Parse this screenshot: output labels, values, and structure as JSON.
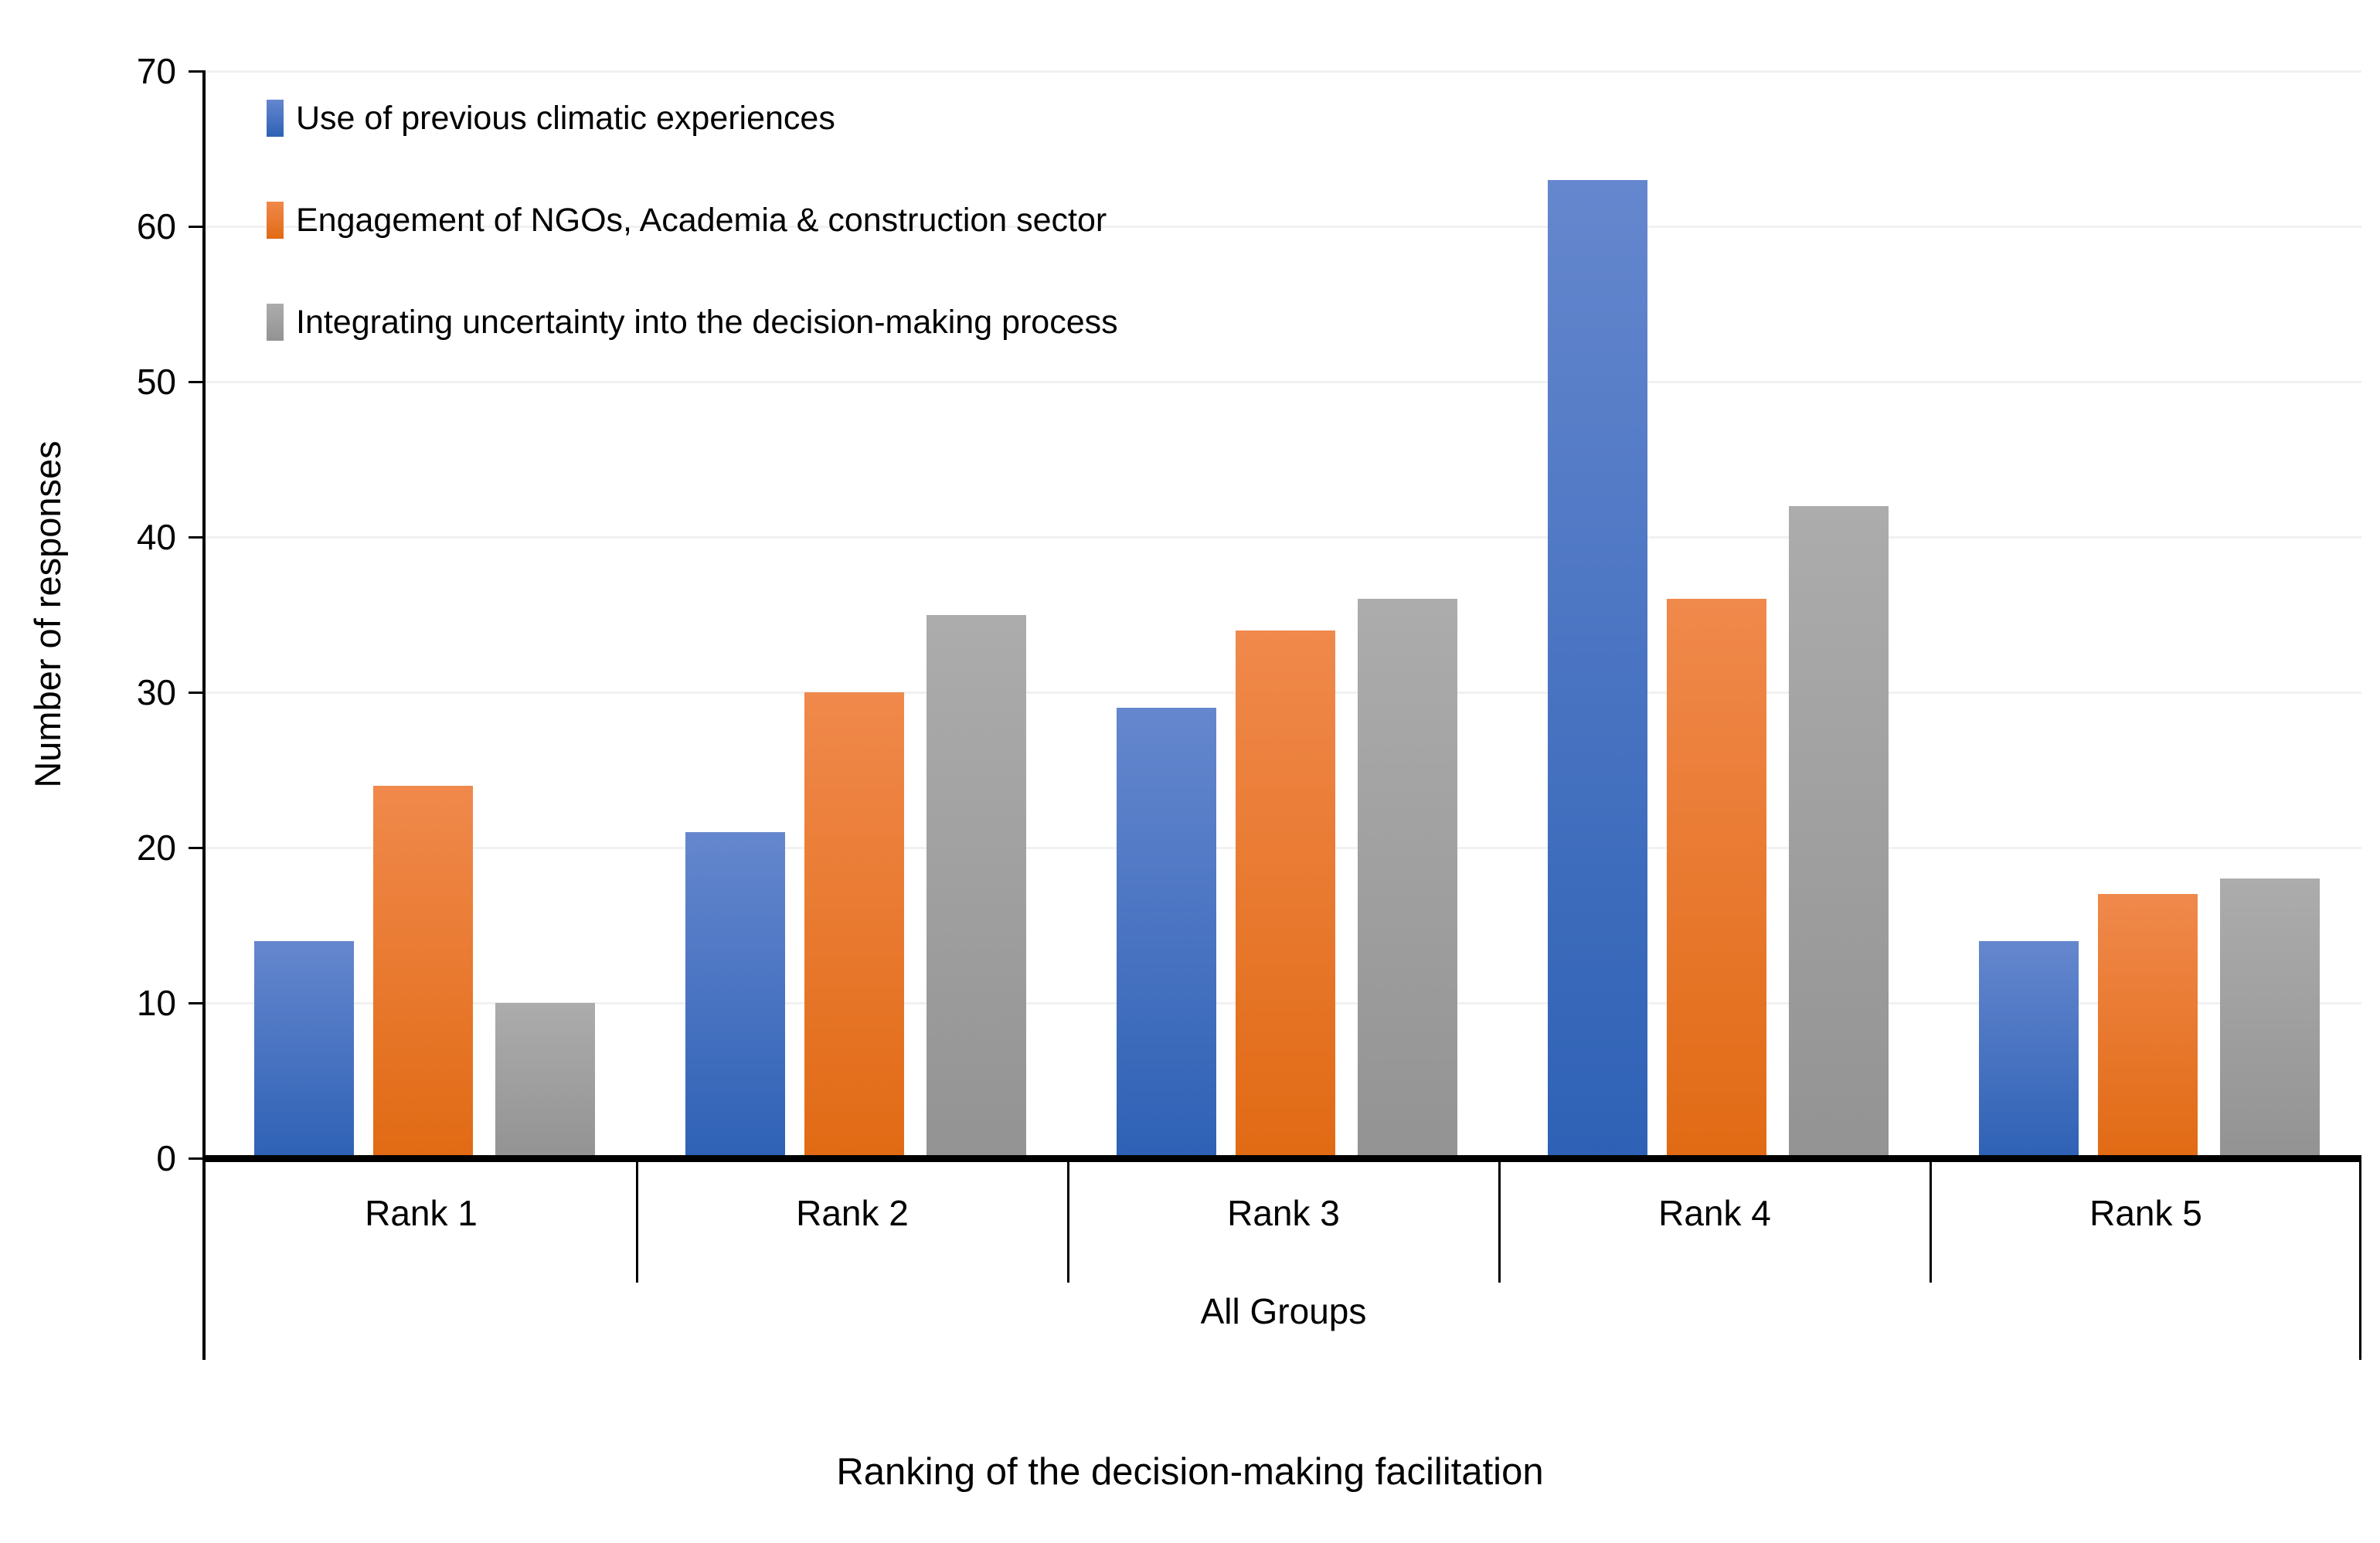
{
  "chart_data": {
    "type": "bar",
    "title": "Ranking of the decision-making facilitation",
    "ylabel": "Number of responses",
    "group_label": "All Groups",
    "categories": [
      "Rank 1",
      "Rank 2",
      "Rank 3",
      "Rank 4",
      "Rank 5"
    ],
    "series": [
      {
        "name": "Use of previous climatic experiences",
        "color_top": "#6587CE",
        "color_bottom": "#2E61B5",
        "values": [
          14,
          21,
          29,
          63,
          14
        ]
      },
      {
        "name": "Engagement of NGOs, Academia & construction sector",
        "color_top": "#F0894C",
        "color_bottom": "#E16A14",
        "values": [
          24,
          30,
          34,
          36,
          17
        ]
      },
      {
        "name": "Integrating uncertainty into the decision-making process",
        "color_top": "#ACACAC",
        "color_bottom": "#939393",
        "values": [
          10,
          35,
          36,
          42,
          18
        ]
      }
    ],
    "ylim": [
      0,
      70
    ],
    "ytick_step": 10,
    "yticks": [
      "0",
      "10",
      "20",
      "30",
      "40",
      "50",
      "60",
      "70"
    ],
    "grid": true,
    "legend_position": "top-left",
    "gridline_color": "#F1F1F1",
    "axis_color": "#000000"
  }
}
